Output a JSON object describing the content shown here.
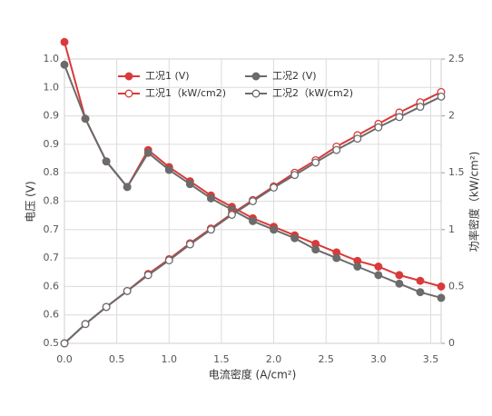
{
  "chart_data": {
    "type": "line",
    "x_label": "电流密度 (A/cm²)",
    "y_label": "电压 (V)",
    "y2_label": "功率密度（kW/cm²)",
    "x": [
      0,
      0.2,
      0.4,
      0.6,
      0.8,
      1.0,
      1.2,
      1.4,
      1.6,
      1.8,
      2.0,
      2.2,
      2.4,
      2.6,
      2.8,
      3.0,
      3.2,
      3.4,
      3.6
    ],
    "series": [
      {
        "name": "工况1 (V)",
        "color": "#d93a3a",
        "axis": "y",
        "values": [
          1.03,
          0.895,
          0.82,
          0.775,
          0.84,
          0.81,
          0.785,
          0.76,
          0.74,
          0.72,
          0.705,
          0.69,
          0.675,
          0.66,
          0.645,
          0.635,
          0.62,
          0.61,
          0.6
        ]
      },
      {
        "name": "工况2 (V)",
        "color": "#6b6b6b",
        "axis": "y",
        "values": [
          0.99,
          0.895,
          0.82,
          0.775,
          0.835,
          0.805,
          0.78,
          0.755,
          0.735,
          0.715,
          0.7,
          0.685,
          0.665,
          0.65,
          0.635,
          0.62,
          0.605,
          0.59,
          0.58
        ]
      },
      {
        "name": "工况1（kW/cm2)",
        "color": "#d93a3a",
        "axis": "y2",
        "values": [
          0,
          0.17,
          0.32,
          0.46,
          0.61,
          0.74,
          0.88,
          1.01,
          1.14,
          1.26,
          1.38,
          1.5,
          1.61,
          1.73,
          1.83,
          1.93,
          2.03,
          2.12,
          2.21
        ]
      },
      {
        "name": "工况2（kW/cm2)",
        "color": "#6b6b6b",
        "axis": "y2",
        "values": [
          0,
          0.17,
          0.32,
          0.46,
          0.6,
          0.73,
          0.87,
          1.0,
          1.13,
          1.25,
          1.37,
          1.48,
          1.59,
          1.7,
          1.8,
          1.9,
          1.99,
          2.08,
          2.17
        ]
      }
    ],
    "xlim": [
      0,
      3.6
    ],
    "xticks": [
      {
        "value": 0,
        "label": "0.0"
      },
      0.5,
      {
        "value": 1,
        "label": "1.0"
      },
      1.5,
      {
        "value": 2,
        "label": "2.0"
      },
      2.5,
      {
        "value": 3,
        "label": "3.0"
      },
      3.5
    ],
    "ylim": [
      0.5,
      1.0
    ],
    "yticks": [
      0.5,
      {
        "value": 0.55,
        "label": "0.6"
      },
      0.6,
      {
        "value": 0.65,
        "label": "0.7"
      },
      0.7,
      {
        "value": 0.75,
        "label": "0.8"
      },
      0.8,
      {
        "value": 0.85,
        "label": "0.9"
      },
      0.9,
      {
        "value": 0.95,
        "label": "1.0"
      },
      {
        "value": 1,
        "label": "1.0"
      }
    ],
    "y2lim": [
      0,
      2.5
    ],
    "y2ticks": [
      0,
      0.5,
      1,
      1.5,
      2,
      2.5
    ],
    "grid": true
  }
}
